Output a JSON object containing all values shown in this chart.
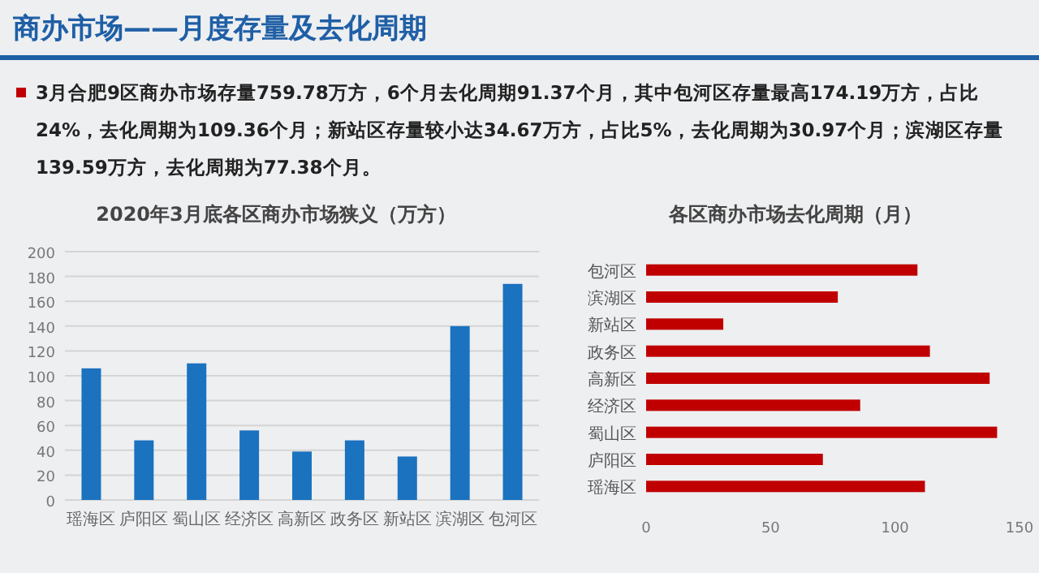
{
  "chart_data": [
    {
      "type": "other",
      "title": "商办市场——月度存量及去化周期",
      "annotations": [
        "3月合肥9区商办市场存量759.78万方，6个月去化周期91.37个月，其中包河区存量最高174.19万方，占比24%，去化周期为109.36个月；新站区存量较小达34.67万方，占比5%，去化周期为30.97个月；滨湖区存量139.59万方，去化周期为77.38个月。"
      ]
    },
    {
      "type": "bar",
      "title": "2020年3月底各区商办市场狭义（万方）",
      "categories": [
        "瑶海区",
        "庐阳区",
        "蜀山区",
        "经济区",
        "高新区",
        "政务区",
        "新站区",
        "滨湖区",
        "包河区"
      ],
      "values": [
        106,
        48,
        110,
        56,
        39,
        48,
        35,
        140,
        174
      ],
      "color": "#1b72bf",
      "ylim": [
        0,
        200
      ],
      "yticks": [
        0,
        20,
        40,
        60,
        80,
        100,
        120,
        140,
        160,
        180,
        200
      ],
      "grid": "y"
    },
    {
      "type": "bar",
      "orientation": "horizontal",
      "title": "各区商办市场去化周期（月）",
      "categories": [
        "包河区",
        "滨湖区",
        "新站区",
        "政务区",
        "高新区",
        "经济区",
        "蜀山区",
        "庐阳区",
        "瑶海区"
      ],
      "values": [
        109,
        77,
        31,
        114,
        138,
        86,
        141,
        71,
        112
      ],
      "color": "#c00000",
      "xlim": [
        0,
        150
      ],
      "xticks": [
        0,
        50,
        100,
        150
      ]
    }
  ]
}
